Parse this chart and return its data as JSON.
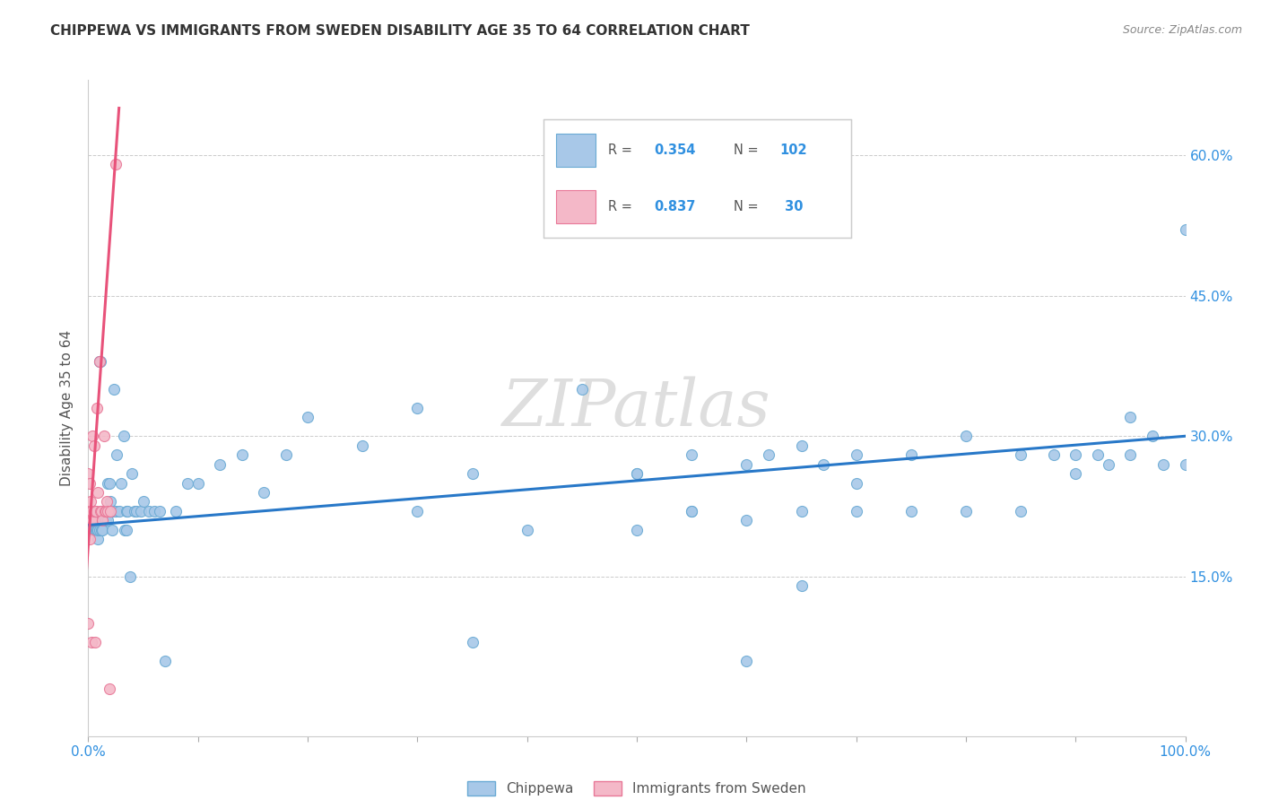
{
  "title": "CHIPPEWA VS IMMIGRANTS FROM SWEDEN DISABILITY AGE 35 TO 64 CORRELATION CHART",
  "source": "Source: ZipAtlas.com",
  "ylabel": "Disability Age 35 to 64",
  "legend_label1": "Chippewa",
  "legend_label2": "Immigrants from Sweden",
  "color_blue_fill": "#a8c8e8",
  "color_blue_edge": "#6aaad4",
  "color_pink_fill": "#f4b8c8",
  "color_pink_edge": "#e87898",
  "color_line_blue": "#2878c8",
  "color_line_pink": "#e8527a",
  "color_tick_blue": "#3090e0",
  "watermark": "ZIPatlas",
  "xlim": [
    0.0,
    1.0
  ],
  "ylim": [
    -0.02,
    0.68
  ],
  "yticks": [
    0.15,
    0.3,
    0.45,
    0.6
  ],
  "ytick_labels": [
    "15.0%",
    "30.0%",
    "45.0%",
    "60.0%"
  ],
  "chippewa_x": [
    0.002,
    0.002,
    0.003,
    0.004,
    0.004,
    0.005,
    0.005,
    0.006,
    0.006,
    0.007,
    0.007,
    0.008,
    0.008,
    0.009,
    0.009,
    0.01,
    0.01,
    0.01,
    0.011,
    0.012,
    0.012,
    0.013,
    0.014,
    0.015,
    0.016,
    0.017,
    0.018,
    0.018,
    0.019,
    0.02,
    0.021,
    0.022,
    0.022,
    0.023,
    0.025,
    0.026,
    0.028,
    0.03,
    0.032,
    0.033,
    0.035,
    0.035,
    0.036,
    0.038,
    0.04,
    0.042,
    0.044,
    0.048,
    0.05,
    0.055,
    0.06,
    0.065,
    0.07,
    0.08,
    0.09,
    0.1,
    0.12,
    0.14,
    0.16,
    0.18,
    0.2,
    0.25,
    0.3,
    0.35,
    0.4,
    0.45,
    0.5,
    0.55,
    0.6,
    0.65,
    0.7,
    0.75,
    0.8,
    0.85,
    0.88,
    0.9,
    0.92,
    0.95,
    0.97,
    1.0,
    0.5,
    0.55,
    0.6,
    0.62,
    0.65,
    0.67,
    0.7,
    0.75,
    0.5,
    0.55,
    0.6,
    0.65,
    0.7,
    0.8,
    0.85,
    0.9,
    0.93,
    0.95,
    0.98,
    1.0,
    0.3,
    0.35
  ],
  "chippewa_y": [
    0.2,
    0.22,
    0.2,
    0.2,
    0.22,
    0.2,
    0.22,
    0.2,
    0.22,
    0.2,
    0.21,
    0.2,
    0.21,
    0.19,
    0.2,
    0.38,
    0.38,
    0.2,
    0.38,
    0.2,
    0.22,
    0.2,
    0.22,
    0.21,
    0.21,
    0.22,
    0.21,
    0.25,
    0.25,
    0.23,
    0.22,
    0.22,
    0.2,
    0.35,
    0.22,
    0.28,
    0.22,
    0.25,
    0.3,
    0.2,
    0.22,
    0.2,
    0.22,
    0.15,
    0.26,
    0.22,
    0.22,
    0.22,
    0.23,
    0.22,
    0.22,
    0.22,
    0.06,
    0.22,
    0.25,
    0.25,
    0.27,
    0.28,
    0.24,
    0.28,
    0.32,
    0.29,
    0.33,
    0.26,
    0.2,
    0.35,
    0.26,
    0.22,
    0.06,
    0.14,
    0.25,
    0.22,
    0.22,
    0.22,
    0.28,
    0.28,
    0.28,
    0.32,
    0.3,
    0.52,
    0.26,
    0.28,
    0.27,
    0.28,
    0.29,
    0.27,
    0.28,
    0.28,
    0.2,
    0.22,
    0.21,
    0.22,
    0.22,
    0.3,
    0.28,
    0.26,
    0.27,
    0.28,
    0.27,
    0.27,
    0.22,
    0.08
  ],
  "sweden_x": [
    0.0,
    0.0,
    0.001,
    0.001,
    0.001,
    0.002,
    0.002,
    0.003,
    0.003,
    0.004,
    0.004,
    0.005,
    0.005,
    0.006,
    0.006,
    0.007,
    0.008,
    0.009,
    0.01,
    0.011,
    0.012,
    0.013,
    0.014,
    0.015,
    0.016,
    0.017,
    0.018,
    0.019,
    0.02,
    0.025
  ],
  "sweden_y": [
    0.26,
    0.1,
    0.25,
    0.22,
    0.19,
    0.23,
    0.21,
    0.22,
    0.08,
    0.21,
    0.3,
    0.29,
    0.22,
    0.08,
    0.22,
    0.22,
    0.33,
    0.24,
    0.38,
    0.22,
    0.22,
    0.21,
    0.3,
    0.22,
    0.22,
    0.23,
    0.22,
    0.03,
    0.22,
    0.59
  ],
  "blue_line_x": [
    0.0,
    1.0
  ],
  "blue_line_y": [
    0.205,
    0.3
  ],
  "pink_line_x": [
    -0.005,
    0.028
  ],
  "pink_line_y": [
    0.1,
    0.65
  ]
}
